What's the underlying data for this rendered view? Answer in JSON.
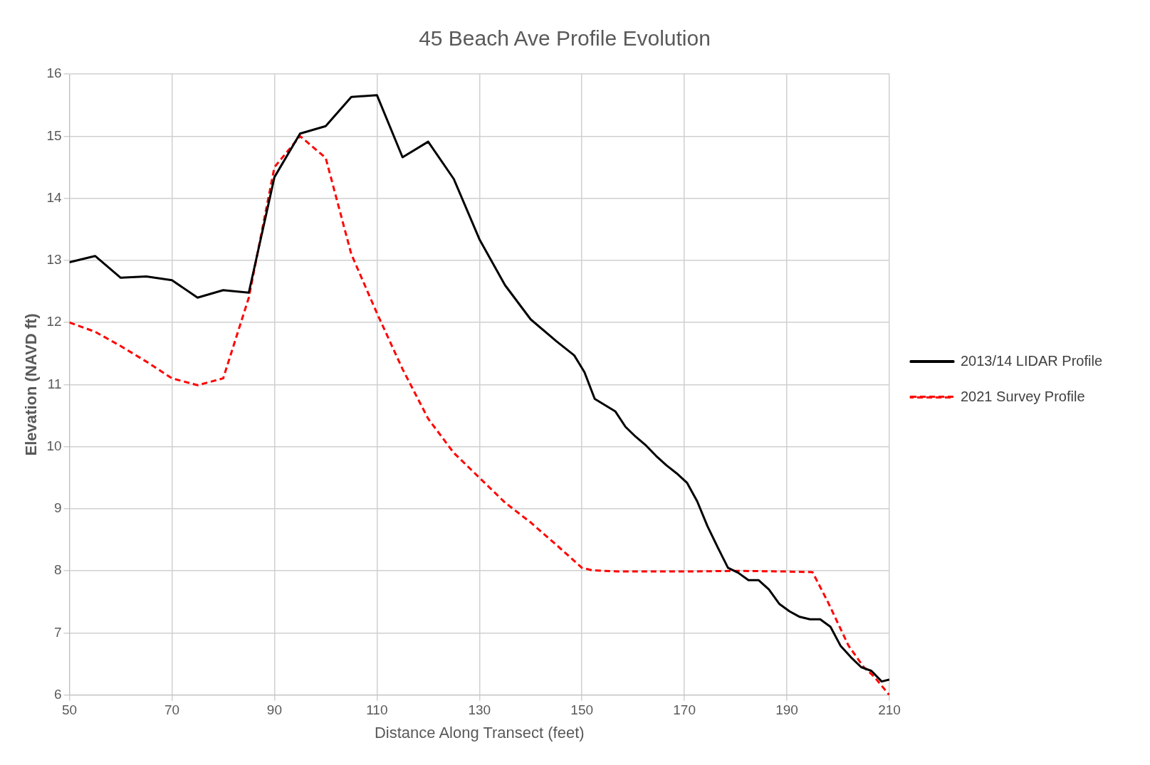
{
  "chart_data": {
    "type": "line",
    "title": "45 Beach Ave Profile Evolution",
    "xlabel": "Distance Along Transect (feet)",
    "ylabel": "Elevation (NAVD ft)",
    "xlim": [
      50,
      210
    ],
    "xticks": [
      50,
      70,
      90,
      110,
      130,
      150,
      170,
      190,
      210
    ],
    "ylim": [
      6,
      16
    ],
    "yticks": [
      6,
      7,
      8,
      9,
      10,
      11,
      12,
      13,
      14,
      15,
      16
    ],
    "grid": true,
    "legend": "right",
    "marker": "none",
    "series": [
      {
        "name": "2013/14 LIDAR Profile",
        "color": "#000000",
        "line_style": "solid",
        "x": [
          50,
          55,
          60,
          65,
          70,
          75,
          80,
          85,
          90,
          95,
          100,
          105,
          110,
          115,
          120,
          125,
          130,
          135,
          140,
          145,
          148.5,
          150.5,
          152.5,
          154.5,
          156.5,
          158.5,
          160.5,
          162.5,
          164.5,
          166.5,
          168.5,
          170.5,
          172.5,
          174.5,
          176.5,
          178.5,
          180.5,
          182.5,
          184.5,
          186.5,
          188.5,
          190.5,
          192.5,
          194.5,
          196.5,
          198.5,
          200.5,
          202.5,
          204.5,
          206.5,
          208.5,
          210
        ],
        "values": [
          12.97,
          13.07,
          12.72,
          12.74,
          12.68,
          12.4,
          12.52,
          12.48,
          14.34,
          15.04,
          15.16,
          15.63,
          15.66,
          14.66,
          14.91,
          14.31,
          13.34,
          12.6,
          12.05,
          11.7,
          11.47,
          11.2,
          10.77,
          10.67,
          10.57,
          10.32,
          10.16,
          10.02,
          9.85,
          9.7,
          9.57,
          9.42,
          9.12,
          8.72,
          8.38,
          8.05,
          7.97,
          7.85,
          7.85,
          7.7,
          7.47,
          7.35,
          7.26,
          7.22,
          7.22,
          7.1,
          6.79,
          6.61,
          6.45,
          6.39,
          6.22,
          6.25
        ]
      },
      {
        "name": "2021 Survey Profile",
        "color": "#ff0000",
        "line_style": "dashed",
        "x": [
          50,
          55,
          60,
          65,
          70,
          75,
          80,
          85,
          90,
          95,
          100,
          105,
          110,
          115,
          120,
          125,
          130,
          135,
          140,
          145,
          150,
          152,
          157,
          170,
          180,
          190,
          195,
          198,
          200,
          202,
          205,
          207,
          210
        ],
        "values": [
          12,
          11.85,
          11.62,
          11.37,
          11.1,
          10.99,
          11.1,
          12.4,
          14.5,
          15.0,
          14.65,
          13.1,
          12.15,
          11.25,
          10.45,
          9.9,
          9.5,
          9.1,
          8.78,
          8.42,
          8.05,
          8.01,
          7.99,
          7.99,
          8.0,
          7.99,
          7.98,
          7.5,
          7.15,
          6.8,
          6.45,
          6.3,
          6.0
        ]
      }
    ]
  }
}
